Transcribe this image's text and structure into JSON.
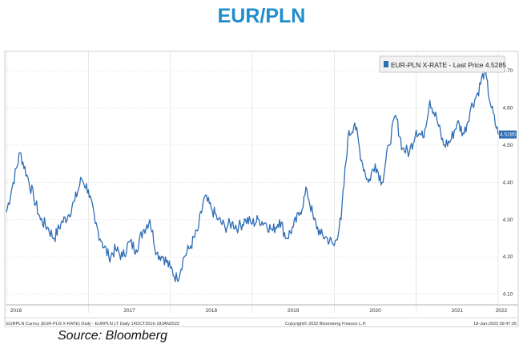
{
  "page": {
    "title": "EUR/PLN",
    "source": "Source: Bloomberg"
  },
  "colors": {
    "title": "#1f8dcc",
    "line": "#2f6db5",
    "grid": "#d8d8d8",
    "axis_text": "#333333"
  },
  "chart_data": {
    "type": "line",
    "title": "",
    "xlabel": "",
    "ylabel": "",
    "x_tick_labels": [
      "2016",
      "2017",
      "2018",
      "2019",
      "2020",
      "2021",
      "2022"
    ],
    "y_tick_labels": [
      "4.10",
      "4.20",
      "4.30",
      "4.40",
      "4.50",
      "4.60",
      "4.70"
    ],
    "ylim": [
      4.08,
      4.73
    ],
    "xlim": [
      "2016-01",
      "2022-01"
    ],
    "grid": true,
    "legend": {
      "position": "top-right",
      "label": "EUR-PLN X-RATE - Last Price 4.5285"
    },
    "last_price_label": "4.5285",
    "last_price": 4.5285,
    "series": [
      {
        "name": "EUR-PLN X-RATE",
        "x": [
          "2016-01",
          "2016-02",
          "2016-03",
          "2016-04",
          "2016-05",
          "2016-06",
          "2016-07",
          "2016-08",
          "2016-09",
          "2016-10",
          "2016-11",
          "2016-12",
          "2017-01",
          "2017-02",
          "2017-03",
          "2017-04",
          "2017-05",
          "2017-06",
          "2017-07",
          "2017-08",
          "2017-09",
          "2017-10",
          "2017-11",
          "2017-12",
          "2018-01",
          "2018-02",
          "2018-03",
          "2018-04",
          "2018-05",
          "2018-06",
          "2018-07",
          "2018-08",
          "2018-09",
          "2018-10",
          "2018-11",
          "2018-12",
          "2019-01",
          "2019-02",
          "2019-03",
          "2019-04",
          "2019-05",
          "2019-06",
          "2019-07",
          "2019-08",
          "2019-09",
          "2019-10",
          "2019-11",
          "2019-12",
          "2020-01",
          "2020-02",
          "2020-03",
          "2020-04",
          "2020-05",
          "2020-06",
          "2020-07",
          "2020-08",
          "2020-09",
          "2020-10",
          "2020-11",
          "2020-12",
          "2021-01",
          "2021-02",
          "2021-03",
          "2021-04",
          "2021-05",
          "2021-06",
          "2021-07",
          "2021-08",
          "2021-09",
          "2021-10",
          "2021-11",
          "2021-12",
          "2022-01"
        ],
        "y": [
          4.32,
          4.4,
          4.48,
          4.42,
          4.36,
          4.3,
          4.28,
          4.25,
          4.29,
          4.31,
          4.35,
          4.41,
          4.38,
          4.29,
          4.24,
          4.2,
          4.22,
          4.2,
          4.24,
          4.22,
          4.27,
          4.3,
          4.21,
          4.2,
          4.17,
          4.14,
          4.2,
          4.23,
          4.27,
          4.36,
          4.33,
          4.3,
          4.28,
          4.29,
          4.28,
          4.3,
          4.29,
          4.3,
          4.29,
          4.27,
          4.3,
          4.25,
          4.28,
          4.32,
          4.38,
          4.3,
          4.26,
          4.25,
          4.23,
          4.3,
          4.52,
          4.56,
          4.46,
          4.4,
          4.45,
          4.4,
          4.5,
          4.58,
          4.49,
          4.48,
          4.54,
          4.52,
          4.62,
          4.57,
          4.5,
          4.51,
          4.56,
          4.53,
          4.6,
          4.64,
          4.7,
          4.6,
          4.5285
        ]
      }
    ]
  },
  "footer": {
    "left": "EURPLN Curncy (EUR-PLN X-RATE) Daily - EURPLN LT Daily 14OCT2016-18JAN2022",
    "center": "Copyright© 2022 Bloomberg Finance L.P.",
    "right": "18-Jan-2022 09:47:26"
  }
}
